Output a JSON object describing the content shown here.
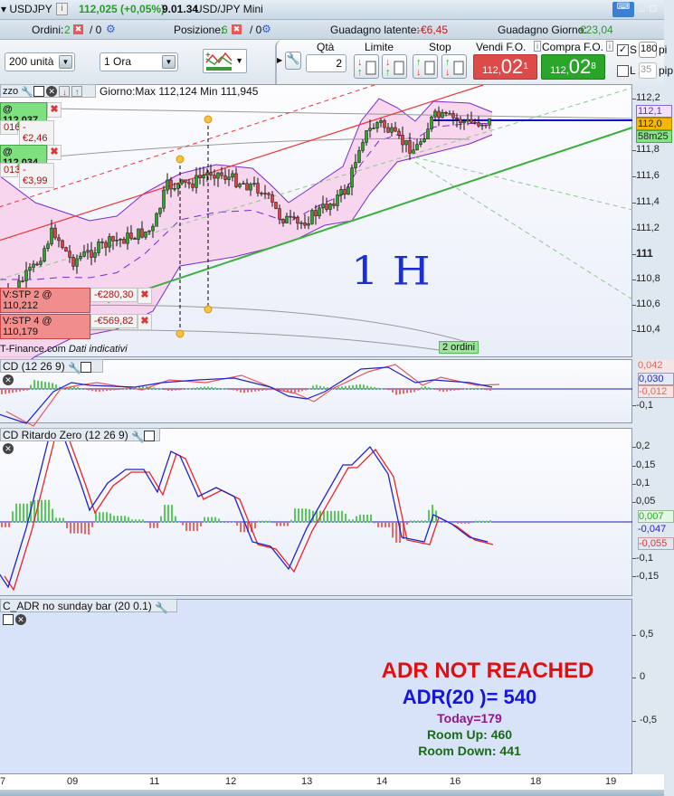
{
  "title": {
    "symbol": "▾ USDJPY",
    "info": "i",
    "price": "112,025 (+0,05%)",
    "time": "9.01.34",
    "instrument": "USD/JPY Mini",
    "minimize": "_",
    "maximize": "□"
  },
  "status": {
    "orders_label": "Ordini:",
    "orders_count": "2",
    "orders_sep": "/ 0",
    "positions_label": "Posizione:",
    "positions_count": "6",
    "positions_sep": "/ 0",
    "unrealized_label": "Guadagno latente:",
    "unrealized_value": "-€6,45",
    "daily_label": "Guadagno Giorno:",
    "daily_value": "€23,04"
  },
  "toolbar": {
    "units": "200 unità",
    "timeframe": "1 Ora",
    "qty_label": "Qtà",
    "qty_value": "2",
    "limit_label": "Limite",
    "stop_label": "Stop",
    "sell_label": "Vendi F.O.",
    "buy_label": "Compra F.O.",
    "sell_price_small": "112,",
    "sell_price_big": "02",
    "sell_price_sup": "1",
    "buy_price_small": "112,",
    "buy_price_big": "02",
    "buy_price_sup": "8",
    "s_label": "S",
    "s_value": "180",
    "s_unit": "pi",
    "l_label": "L",
    "l_value": "35",
    "l_unit": "pip",
    "s_checked": true,
    "l_checked": false
  },
  "price_panel": {
    "title": "zzo",
    "day_info": "Giorno:Max 112,124 Min 111,945",
    "source": "T-Finance.com",
    "source_note": "Dati indicativi",
    "orders_badge": "2 ordini",
    "handwriting": "1 H",
    "orders": [
      {
        "label": "@ 112,037",
        "type": "limit"
      },
      {
        "label": "016",
        "pnl": "-€2,46"
      },
      {
        "label": "@ 112,034",
        "type": "limit"
      },
      {
        "label": "013",
        "pnl": "-€3,99"
      },
      {
        "label": "V:STP 2 @ 110,212",
        "pnl": "-€280,30"
      },
      {
        "label": "V:STP 4 @ 110,179",
        "pnl": "-€569,82"
      }
    ],
    "axis": [
      "112,2",
      "111,8",
      "111,6",
      "111,4",
      "111,2",
      "111",
      "110,8",
      "110,6",
      "110,4"
    ],
    "axis_tags": {
      "upper": "112,1",
      "last": "112,0",
      "timer": "58m25"
    }
  },
  "macd": {
    "title": "CD (12 26 9)",
    "tags": [
      "0,042",
      "0,030",
      "-0,012"
    ],
    "axis": [
      "-0,1"
    ]
  },
  "macd_zl": {
    "title": "CD Ritardo Zero (12 26 9)",
    "axis": [
      "0,2",
      "0,15",
      "0,1",
      "0,05",
      "-0,1",
      "-0,15"
    ],
    "tags": [
      "0,007",
      "-0,047",
      "-0,055"
    ]
  },
  "adr": {
    "title": "C_ADR no sunday bar (20 0.1)",
    "status": "ADR NOT REACHED",
    "adr": "ADR(20 )= 540",
    "today": "Today=179",
    "room_up": "Room Up: 460",
    "room_down": "Room Down: 441",
    "axis": [
      "0,5",
      "0",
      "-0,5"
    ]
  },
  "xaxis": [
    "7",
    "09",
    "11",
    "12",
    "13",
    "14",
    "16",
    "18",
    "19"
  ],
  "colors": {
    "buy": "#2aa52a",
    "sell": "#dd3b3b",
    "profit": "#2a9a2a",
    "loss": "#c21a1a"
  }
}
